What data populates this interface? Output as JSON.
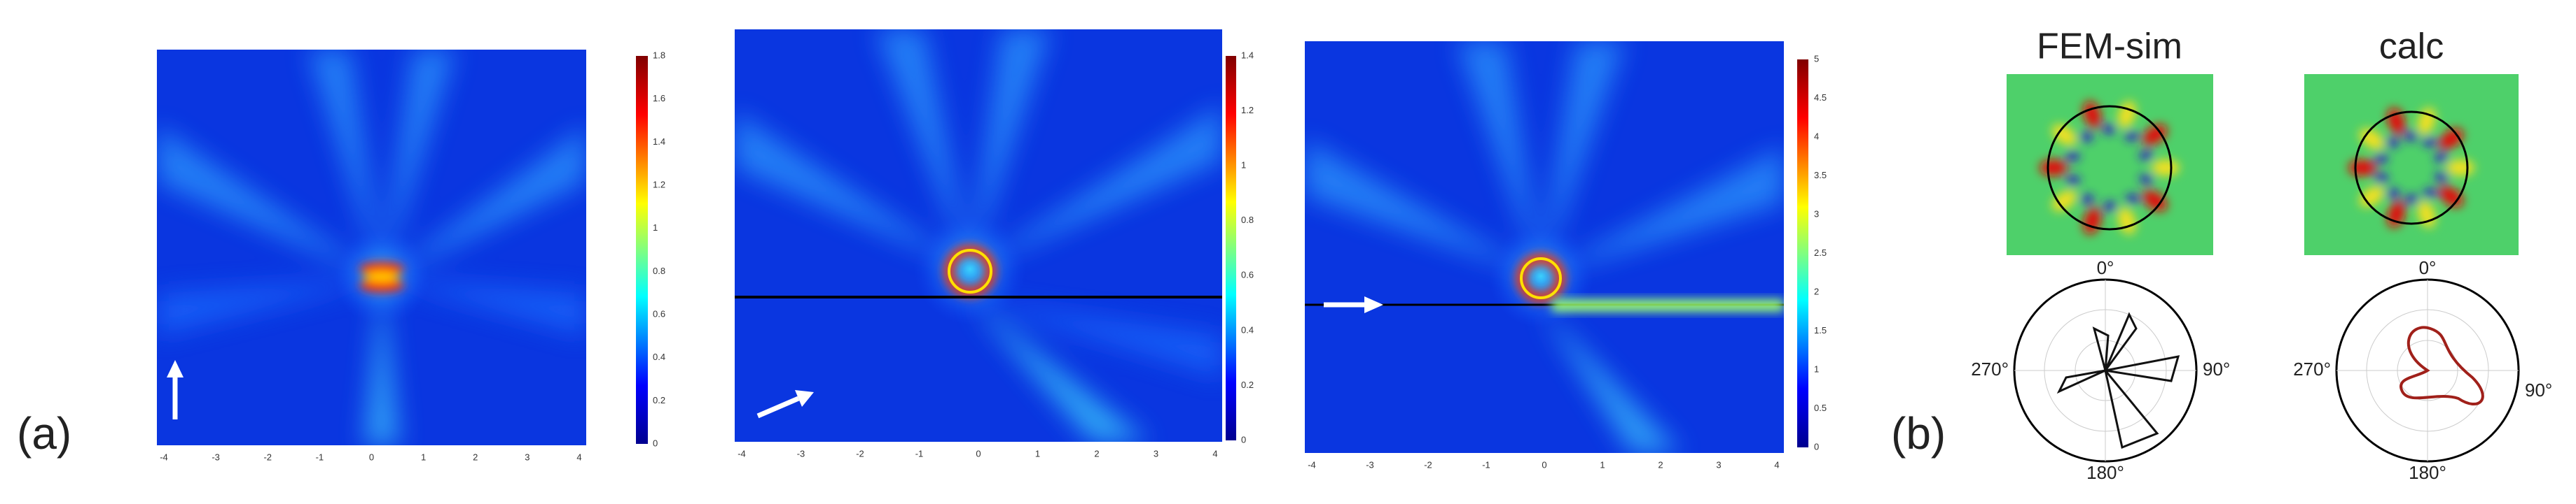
{
  "label_a": "(a)",
  "label_b": "(b)",
  "panels": [
    {
      "x_ticks": [
        -4,
        -3,
        -2,
        -1,
        0,
        1,
        2,
        3,
        4
      ],
      "colorbar_ticks": [
        0,
        0.2,
        0.4,
        0.6,
        0.8,
        1,
        1.2,
        1.4,
        1.6,
        1.8
      ]
    },
    {
      "x_ticks": [
        -4,
        -3,
        -2,
        -1,
        0,
        1,
        2,
        3,
        4
      ],
      "colorbar_ticks": [
        0,
        0.2,
        0.4,
        0.6,
        0.8,
        1,
        1.2,
        1.4
      ]
    },
    {
      "x_ticks": [
        -4,
        -3,
        -2,
        -1,
        0,
        1,
        2,
        3,
        4
      ],
      "colorbar_ticks": [
        0,
        0.5,
        1,
        1.5,
        2,
        2.5,
        3,
        3.5,
        4,
        4.5,
        5
      ]
    }
  ],
  "fem_title": "FEM-sim",
  "calc_title": "calc",
  "fem_polar_labels": [
    "0°",
    "90°",
    "180°",
    "270°"
  ],
  "calc_polar_labels": [
    "0°",
    "90°",
    "180°",
    "270°"
  ]
}
